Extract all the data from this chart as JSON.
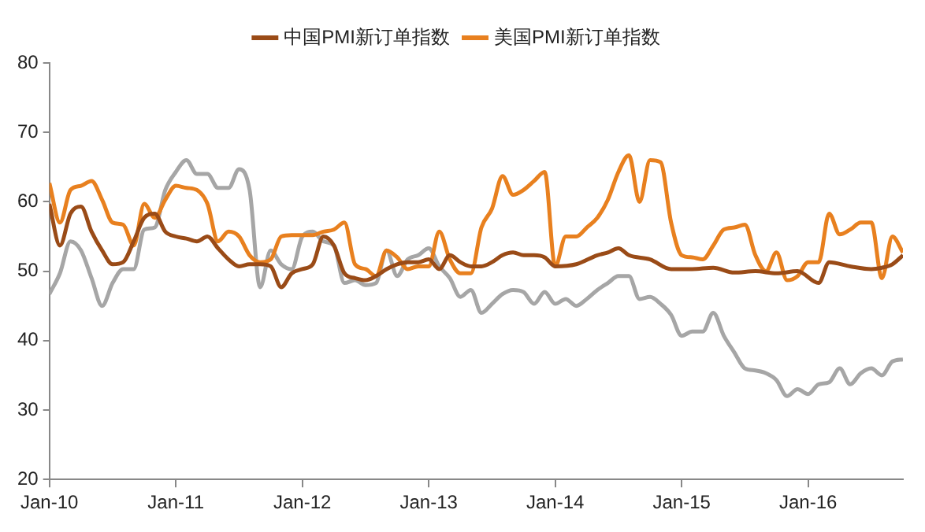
{
  "chart_data": {
    "type": "line",
    "xlim": [
      "2010-01",
      "2016-10"
    ],
    "xticks": [
      {
        "value": "2010-01",
        "label": "Jan-10"
      },
      {
        "value": "2011-01",
        "label": "Jan-11"
      },
      {
        "value": "2012-01",
        "label": "Jan-12"
      },
      {
        "value": "2013-01",
        "label": "Jan-13"
      },
      {
        "value": "2014-01",
        "label": "Jan-14"
      },
      {
        "value": "2015-01",
        "label": "Jan-15"
      },
      {
        "value": "2016-01",
        "label": "Jan-16"
      }
    ],
    "ylim": [
      20,
      80
    ],
    "yticks": [
      20,
      30,
      40,
      50,
      60,
      70,
      80
    ],
    "grid": false,
    "legend": "top",
    "line_style": "solid",
    "marker": "none",
    "series": [
      {
        "name": "中国PMI新订单指数",
        "color": "#9a4b17",
        "x": [
          "2010-01",
          "2010-02",
          "2010-03",
          "2010-04",
          "2010-05",
          "2010-06",
          "2010-07",
          "2010-08",
          "2010-09",
          "2010-10",
          "2010-11",
          "2010-12",
          "2011-01",
          "2011-02",
          "2011-03",
          "2011-04",
          "2011-05",
          "2011-06",
          "2011-07",
          "2011-08",
          "2011-09",
          "2011-10",
          "2011-11",
          "2011-12",
          "2012-01",
          "2012-02",
          "2012-03",
          "2012-04",
          "2012-05",
          "2012-06",
          "2012-07",
          "2012-08",
          "2012-09",
          "2012-10",
          "2012-11",
          "2012-12",
          "2013-01",
          "2013-02",
          "2013-03",
          "2013-04",
          "2013-05",
          "2013-06",
          "2013-07",
          "2013-08",
          "2013-09",
          "2013-10",
          "2013-11",
          "2013-12",
          "2014-01",
          "2014-03",
          "2014-05",
          "2014-06",
          "2014-07",
          "2014-08",
          "2014-10",
          "2014-12",
          "2015-02",
          "2015-04",
          "2015-06",
          "2015-08",
          "2015-10",
          "2015-12",
          "2016-02",
          "2016-03",
          "2016-05",
          "2016-07",
          "2016-08",
          "2016-09",
          "2016-10"
        ],
        "values": [
          59.7,
          53.7,
          58.3,
          59.3,
          55.7,
          53,
          51,
          51.3,
          54.3,
          57.7,
          58.3,
          55.7,
          55,
          54.7,
          54.3,
          55,
          53.3,
          51.7,
          50.7,
          51,
          51,
          50.7,
          47.7,
          49.7,
          50.3,
          51,
          55,
          53.7,
          49.7,
          49,
          48.7,
          49.3,
          50.3,
          51,
          51.3,
          51.3,
          51.7,
          50.3,
          52.3,
          51.3,
          50.7,
          50.7,
          51.3,
          52.3,
          52.7,
          52.3,
          52.3,
          52,
          50.7,
          51,
          52.3,
          52.7,
          53.3,
          52.3,
          51.7,
          50.3,
          50.3,
          50.5,
          49.8,
          50,
          49.7,
          50,
          48.3,
          51.3,
          50.7,
          50.3,
          50.5,
          51,
          52.3
        ]
      },
      {
        "name": "美国PMI新订单指数",
        "color": "#e8801f",
        "x": [
          "2010-01",
          "2010-02",
          "2010-03",
          "2010-04",
          "2010-05",
          "2010-06",
          "2010-07",
          "2010-08",
          "2010-09",
          "2010-10",
          "2010-11",
          "2010-12",
          "2011-01",
          "2011-02",
          "2011-03",
          "2011-04",
          "2011-05",
          "2011-06",
          "2011-07",
          "2011-08",
          "2011-09",
          "2011-10",
          "2011-11",
          "2011-12",
          "2012-01",
          "2012-02",
          "2012-03",
          "2012-04",
          "2012-05",
          "2012-06",
          "2012-07",
          "2012-08",
          "2012-09",
          "2012-10",
          "2012-11",
          "2012-12",
          "2013-01",
          "2013-02",
          "2013-03",
          "2013-04",
          "2013-05",
          "2013-06",
          "2013-07",
          "2013-08",
          "2013-09",
          "2013-10",
          "2013-11",
          "2013-12",
          "2014-01",
          "2014-02",
          "2014-03",
          "2014-04",
          "2014-05",
          "2014-06",
          "2014-07",
          "2014-08",
          "2014-09",
          "2014-10",
          "2014-11",
          "2014-12",
          "2015-01",
          "2015-02",
          "2015-03",
          "2015-04",
          "2015-05",
          "2015-06",
          "2015-07",
          "2015-08",
          "2015-09",
          "2015-10",
          "2015-11",
          "2015-12",
          "2016-01",
          "2016-02",
          "2016-03",
          "2016-04",
          "2016-05",
          "2016-06",
          "2016-07",
          "2016-08",
          "2016-09",
          "2016-10"
        ],
        "values": [
          62.7,
          57,
          61.7,
          62.3,
          63,
          60.3,
          57,
          56.7,
          53.7,
          59.7,
          57.7,
          60.3,
          62.3,
          62,
          61.7,
          59.7,
          54.3,
          55.7,
          55,
          52.3,
          51.3,
          51.7,
          55,
          55.2,
          55.2,
          55.2,
          55.7,
          56,
          57,
          51,
          50.3,
          49.3,
          53,
          52,
          50.3,
          50.7,
          50.7,
          55.7,
          51.7,
          49.7,
          49.7,
          56.3,
          59,
          63.7,
          61,
          61.7,
          63,
          64.3,
          50.7,
          55,
          55,
          56.3,
          57.7,
          60.3,
          64.3,
          66.7,
          60,
          66,
          65.7,
          57,
          52.3,
          52,
          51.7,
          53.7,
          56,
          56.3,
          56.7,
          52.3,
          50,
          52.7,
          48.7,
          49.3,
          51.3,
          51.3,
          58.3,
          55.3,
          56,
          57,
          57,
          49,
          55,
          52.7
        ]
      },
      {
        "color": "#a6a6a6",
        "x": [
          "2010-01",
          "2010-02",
          "2010-03",
          "2010-04",
          "2010-05",
          "2010-06",
          "2010-07",
          "2010-08",
          "2010-09",
          "2010-10",
          "2010-11",
          "2010-12",
          "2011-01",
          "2011-02",
          "2011-03",
          "2011-04",
          "2011-05",
          "2011-06",
          "2011-07",
          "2011-08",
          "2011-09",
          "2011-10",
          "2011-11",
          "2011-12",
          "2012-01",
          "2012-02",
          "2012-03",
          "2012-04",
          "2012-05",
          "2012-06",
          "2012-07",
          "2012-08",
          "2012-09",
          "2012-10",
          "2012-11",
          "2012-12",
          "2013-01",
          "2013-02",
          "2013-03",
          "2013-04",
          "2013-05",
          "2013-06",
          "2013-07",
          "2013-08",
          "2013-09",
          "2013-10",
          "2013-11",
          "2013-12",
          "2014-01",
          "2014-02",
          "2014-03",
          "2014-04",
          "2014-05",
          "2014-06",
          "2014-07",
          "2014-08",
          "2014-09",
          "2014-10",
          "2014-11",
          "2014-12",
          "2015-01",
          "2015-02",
          "2015-03",
          "2015-04",
          "2015-05",
          "2015-06",
          "2015-07",
          "2015-08",
          "2015-09",
          "2015-10",
          "2015-11",
          "2015-12",
          "2016-01",
          "2016-02",
          "2016-03",
          "2016-04",
          "2016-05",
          "2016-06",
          "2016-07",
          "2016-08",
          "2016-09",
          "2016-10"
        ],
        "values": [
          46.7,
          49.7,
          54.3,
          53,
          49,
          45,
          48.3,
          50.3,
          50.3,
          56,
          56.3,
          61.7,
          64.3,
          66,
          64,
          64,
          62,
          62,
          64.7,
          61.7,
          47.7,
          53,
          51,
          50.3,
          55,
          55.7,
          54.3,
          53.7,
          48.3,
          48.7,
          48,
          48.3,
          53,
          49.3,
          51.7,
          52.3,
          53.3,
          50.7,
          49,
          46.3,
          47.3,
          44,
          45.3,
          46.7,
          47.3,
          47,
          45.3,
          47,
          45.3,
          46,
          45,
          46,
          47.3,
          48.3,
          49.3,
          49.3,
          46,
          46.3,
          45.3,
          43.7,
          40.7,
          41.3,
          41.3,
          44,
          40.7,
          38.3,
          36,
          35.7,
          35.3,
          34.3,
          32,
          33,
          32.3,
          33.7,
          34,
          36,
          33.7,
          35.3,
          36,
          35,
          37,
          37.3
        ]
      }
    ]
  }
}
